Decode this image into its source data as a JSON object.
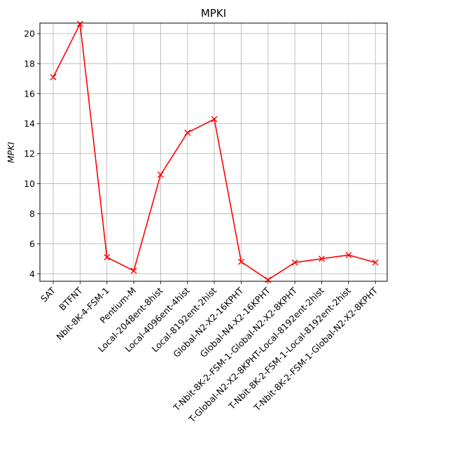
{
  "chart_data": {
    "type": "line",
    "title": "MPKI",
    "xlabel": "",
    "ylabel": "MPKI",
    "ylim": [
      3.5,
      20.7
    ],
    "yticks": [
      4,
      6,
      8,
      10,
      12,
      14,
      16,
      18,
      20
    ],
    "grid": true,
    "line_color": "#ff0000",
    "marker": "x",
    "categories": [
      "SAT",
      "BTFNT",
      "Nbit-8K-4-FSM-1",
      "Pentium-M",
      "Local-2048ent-8hist",
      "Local-4096ent-4hist",
      "Local-8192ent-2hist",
      "Global-N2-X2-16KPHT",
      "Global-N4-X2-16KPHT",
      "T-Nbit-8K-2-FSM-1-Global-N2-X2-8KPHT",
      "T-Global-N2-X2-8KPHT-Local-8192ent-2hist",
      "T-Nbit-8K-2-FSM-1-Local-8192ent-2hist",
      "T-Nbit-8K-2-FSM-1-Global-N2-X2-8KPHT"
    ],
    "series": [
      {
        "values": [
          17.1,
          20.65,
          5.1,
          4.2,
          10.6,
          13.4,
          14.3,
          4.8,
          3.6,
          4.75,
          5.0,
          5.25,
          4.75
        ]
      }
    ]
  }
}
